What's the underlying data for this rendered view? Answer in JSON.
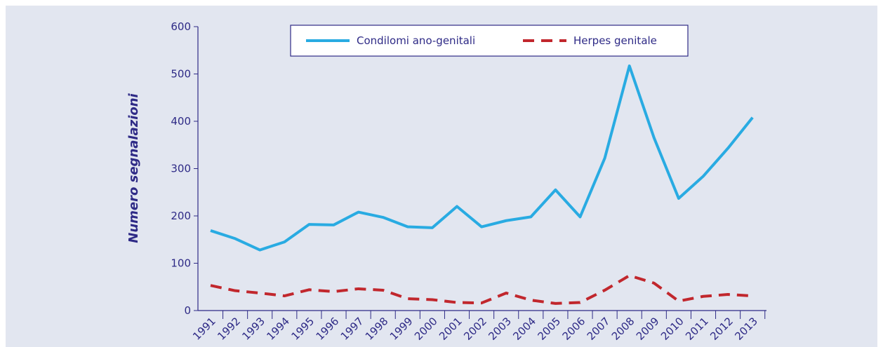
{
  "chart_data": {
    "type": "line",
    "y_label": "Numero segnalazioni",
    "x": [
      "1991",
      "1992",
      "1993",
      "1994",
      "1995",
      "1996",
      "1997",
      "1998",
      "1999",
      "2000",
      "2001",
      "2002",
      "2003",
      "2004",
      "2005",
      "2006",
      "2007",
      "2008",
      "2009",
      "2010",
      "2011",
      "2012",
      "2013"
    ],
    "series": [
      {
        "name": "Condilomi ano-genitali",
        "color": "#29abe2",
        "dash": false,
        "values": [
          169,
          152,
          128,
          145,
          182,
          181,
          208,
          197,
          177,
          175,
          220,
          177,
          190,
          198,
          255,
          198,
          322,
          517,
          365,
          237,
          284,
          343,
          408
        ]
      },
      {
        "name": "Herpes genitale",
        "color": "#c1272d",
        "dash": true,
        "values": [
          53,
          42,
          37,
          31,
          44,
          40,
          46,
          43,
          25,
          23,
          17,
          16,
          37,
          22,
          15,
          17,
          43,
          74,
          58,
          20,
          30,
          34,
          31
        ]
      }
    ],
    "ylim": [
      0,
      600
    ],
    "yticks": [
      0,
      100,
      200,
      300,
      400,
      500,
      600
    ],
    "grid": false,
    "legend": "top"
  }
}
